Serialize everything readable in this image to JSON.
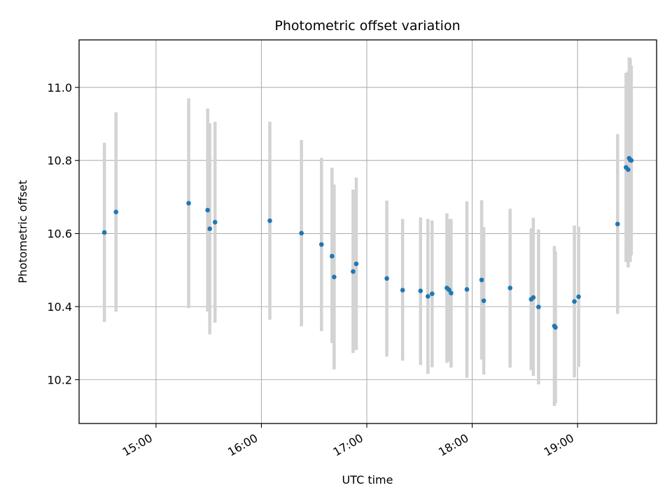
{
  "chart_data": {
    "type": "scatter",
    "title": "Photometric offset variation",
    "xlabel": "UTC time",
    "ylabel": "Photometric offset",
    "grid": true,
    "x_unit": "hours UTC",
    "xlim": [
      14.27,
      19.75
    ],
    "ylim": [
      10.08,
      11.13
    ],
    "x_ticks": [
      15,
      16,
      17,
      18,
      19
    ],
    "x_tick_labels": [
      "15:00",
      "16:00",
      "17:00",
      "18:00",
      "19:00"
    ],
    "y_ticks": [
      10.2,
      10.4,
      10.6,
      10.8,
      11.0
    ],
    "y_tick_labels": [
      "10.2",
      "10.4",
      "10.6",
      "10.8",
      "11.0"
    ],
    "colors": {
      "marker": "#1f77b4",
      "errorbar": "#d3d3d3",
      "grid": "#b0b0b0"
    },
    "series": [
      {
        "points": [
          {
            "x": 14.51,
            "y": 10.603,
            "low": 10.358,
            "high": 10.848
          },
          {
            "x": 14.62,
            "y": 10.659,
            "low": 10.386,
            "high": 10.932
          },
          {
            "x": 15.31,
            "y": 10.683,
            "low": 10.396,
            "high": 10.97
          },
          {
            "x": 15.49,
            "y": 10.664,
            "low": 10.386,
            "high": 10.942
          },
          {
            "x": 15.51,
            "y": 10.613,
            "low": 10.324,
            "high": 10.902
          },
          {
            "x": 15.56,
            "y": 10.631,
            "low": 10.356,
            "high": 10.906
          },
          {
            "x": 16.08,
            "y": 10.635,
            "low": 10.364,
            "high": 10.906
          },
          {
            "x": 16.38,
            "y": 10.601,
            "low": 10.346,
            "high": 10.856
          },
          {
            "x": 16.57,
            "y": 10.57,
            "low": 10.333,
            "high": 10.807
          },
          {
            "x": 16.67,
            "y": 10.538,
            "low": 10.3,
            "high": 10.78
          },
          {
            "x": 16.69,
            "y": 10.481,
            "low": 10.228,
            "high": 10.734
          },
          {
            "x": 16.87,
            "y": 10.496,
            "low": 10.273,
            "high": 10.72
          },
          {
            "x": 16.9,
            "y": 10.517,
            "low": 10.281,
            "high": 10.753
          },
          {
            "x": 17.19,
            "y": 10.477,
            "low": 10.263,
            "high": 10.69
          },
          {
            "x": 17.34,
            "y": 10.445,
            "low": 10.252,
            "high": 10.64
          },
          {
            "x": 17.51,
            "y": 10.443,
            "low": 10.24,
            "high": 10.644
          },
          {
            "x": 17.58,
            "y": 10.428,
            "low": 10.216,
            "high": 10.64
          },
          {
            "x": 17.62,
            "y": 10.435,
            "low": 10.234,
            "high": 10.636
          },
          {
            "x": 17.76,
            "y": 10.451,
            "low": 10.246,
            "high": 10.655
          },
          {
            "x": 17.78,
            "y": 10.446,
            "low": 10.25,
            "high": 10.64
          },
          {
            "x": 17.8,
            "y": 10.437,
            "low": 10.233,
            "high": 10.64
          },
          {
            "x": 17.95,
            "y": 10.447,
            "low": 10.205,
            "high": 10.688
          },
          {
            "x": 18.09,
            "y": 10.473,
            "low": 10.255,
            "high": 10.691
          },
          {
            "x": 18.11,
            "y": 10.416,
            "low": 10.214,
            "high": 10.618
          },
          {
            "x": 18.36,
            "y": 10.451,
            "low": 10.233,
            "high": 10.668
          },
          {
            "x": 18.56,
            "y": 10.42,
            "low": 10.226,
            "high": 10.614
          },
          {
            "x": 18.58,
            "y": 10.425,
            "low": 10.21,
            "high": 10.643
          },
          {
            "x": 18.63,
            "y": 10.399,
            "low": 10.187,
            "high": 10.611
          },
          {
            "x": 18.78,
            "y": 10.347,
            "low": 10.128,
            "high": 10.566
          },
          {
            "x": 18.79,
            "y": 10.343,
            "low": 10.135,
            "high": 10.551
          },
          {
            "x": 18.97,
            "y": 10.414,
            "low": 10.206,
            "high": 10.622
          },
          {
            "x": 19.01,
            "y": 10.427,
            "low": 10.235,
            "high": 10.619
          },
          {
            "x": 19.38,
            "y": 10.626,
            "low": 10.38,
            "high": 10.872
          },
          {
            "x": 19.46,
            "y": 10.781,
            "low": 10.522,
            "high": 11.04
          },
          {
            "x": 19.48,
            "y": 10.775,
            "low": 10.507,
            "high": 11.043
          },
          {
            "x": 19.49,
            "y": 10.806,
            "low": 10.53,
            "high": 11.082
          },
          {
            "x": 19.5,
            "y": 10.801,
            "low": 10.522,
            "high": 11.08
          },
          {
            "x": 19.51,
            "y": 10.8,
            "low": 10.541,
            "high": 11.059
          }
        ]
      }
    ]
  }
}
